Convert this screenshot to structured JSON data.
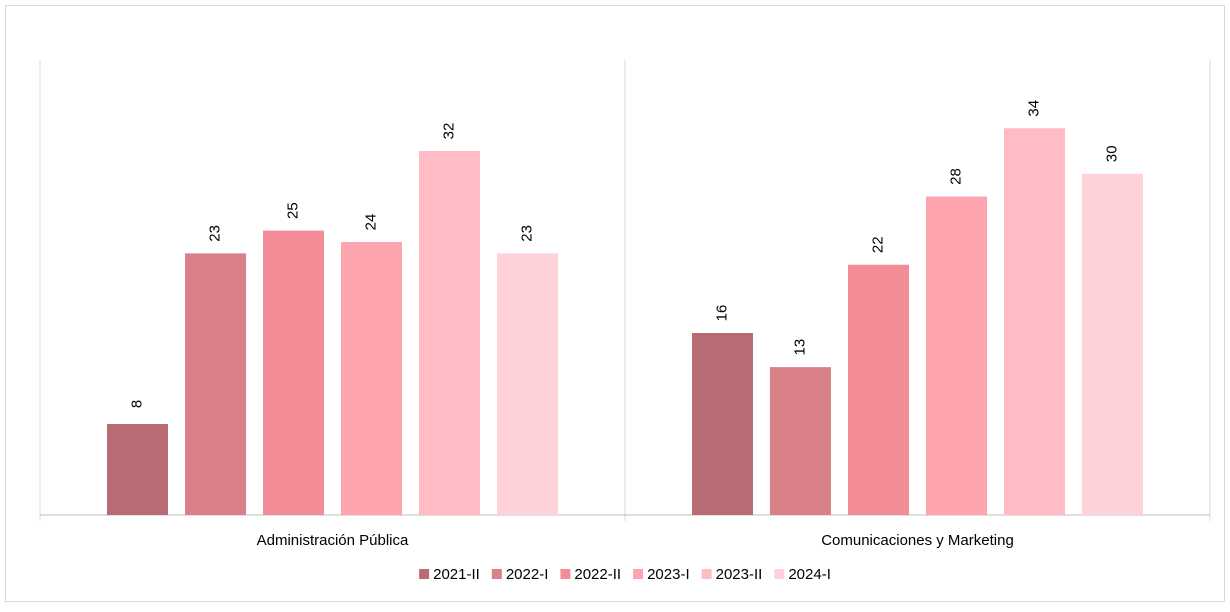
{
  "chart_data": {
    "type": "bar",
    "categories": [
      "Administración Pública",
      "Comunicaciones y Marketing"
    ],
    "series": [
      {
        "name": "2021-II",
        "color": "#b96b73",
        "values": [
          8,
          16
        ]
      },
      {
        "name": "2022-I",
        "color": "#d97f88",
        "values": [
          23,
          13
        ]
      },
      {
        "name": "2022-II",
        "color": "#f28d98",
        "values": [
          25,
          22
        ]
      },
      {
        "name": "2023-I",
        "color": "#fda4ae",
        "values": [
          24,
          28
        ]
      },
      {
        "name": "2023-II",
        "color": "#ffbcc5",
        "values": [
          32,
          34
        ]
      },
      {
        "name": "2024-I",
        "color": "#ffd1d9",
        "values": [
          23,
          30
        ]
      }
    ],
    "ylim": [
      0,
      40
    ],
    "legend": "bottom"
  }
}
